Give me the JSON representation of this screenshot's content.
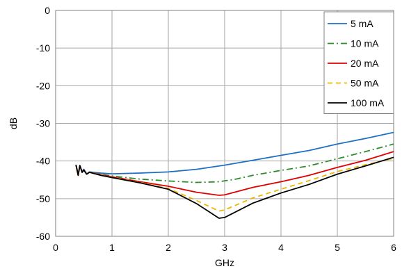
{
  "chart_data": {
    "type": "line",
    "xlabel": "GHz",
    "ylabel": "dB",
    "xlim": [
      0,
      6
    ],
    "ylim": [
      -60,
      0
    ],
    "x_ticks": [
      "0",
      "1",
      "2",
      "3",
      "4",
      "5",
      "6"
    ],
    "y_ticks": [
      "0",
      "-10",
      "-20",
      "-30",
      "-40",
      "-50",
      "-60"
    ],
    "grid": true,
    "legend_position": "top-right",
    "series": [
      {
        "name": "5 mA",
        "color": "#1f6fc5",
        "style": "solid",
        "points": [
          [
            0.36,
            -41.0
          ],
          [
            0.4,
            -43.5
          ],
          [
            0.43,
            -41.2
          ],
          [
            0.47,
            -42.8
          ],
          [
            0.5,
            -42.2
          ],
          [
            0.55,
            -43.4
          ],
          [
            0.6,
            -42.9
          ],
          [
            0.8,
            -43.2
          ],
          [
            1.0,
            -43.4
          ],
          [
            1.5,
            -43.2
          ],
          [
            2.0,
            -42.9
          ],
          [
            2.5,
            -42.2
          ],
          [
            3.0,
            -41.1
          ],
          [
            3.5,
            -39.8
          ],
          [
            4.0,
            -38.5
          ],
          [
            4.5,
            -37.2
          ],
          [
            5.0,
            -35.5
          ],
          [
            5.5,
            -34.0
          ],
          [
            6.0,
            -32.4
          ]
        ]
      },
      {
        "name": "10 mA",
        "color": "#2e8b2e",
        "style": "dashdot",
        "points": [
          [
            0.36,
            -41.0
          ],
          [
            0.4,
            -43.8
          ],
          [
            0.43,
            -41.2
          ],
          [
            0.47,
            -43.0
          ],
          [
            0.5,
            -42.4
          ],
          [
            0.55,
            -43.5
          ],
          [
            0.6,
            -43.0
          ],
          [
            0.8,
            -43.5
          ],
          [
            1.0,
            -44.0
          ],
          [
            1.5,
            -44.8
          ],
          [
            2.0,
            -45.3
          ],
          [
            2.5,
            -45.7
          ],
          [
            2.9,
            -45.5
          ],
          [
            3.2,
            -44.8
          ],
          [
            3.5,
            -43.8
          ],
          [
            4.0,
            -42.5
          ],
          [
            4.5,
            -41.3
          ],
          [
            5.0,
            -39.4
          ],
          [
            5.5,
            -37.5
          ],
          [
            6.0,
            -35.5
          ]
        ]
      },
      {
        "name": "20 mA",
        "color": "#e00000",
        "style": "solid",
        "points": [
          [
            0.36,
            -41.0
          ],
          [
            0.4,
            -43.8
          ],
          [
            0.43,
            -41.2
          ],
          [
            0.47,
            -43.0
          ],
          [
            0.5,
            -42.4
          ],
          [
            0.55,
            -43.5
          ],
          [
            0.6,
            -43.0
          ],
          [
            0.8,
            -43.6
          ],
          [
            1.0,
            -44.2
          ],
          [
            1.5,
            -45.5
          ],
          [
            2.0,
            -46.7
          ],
          [
            2.5,
            -48.3
          ],
          [
            2.9,
            -49.1
          ],
          [
            3.0,
            -49.0
          ],
          [
            3.5,
            -47.0
          ],
          [
            4.0,
            -45.5
          ],
          [
            4.5,
            -43.8
          ],
          [
            5.0,
            -41.7
          ],
          [
            5.5,
            -39.8
          ],
          [
            6.0,
            -37.5
          ]
        ]
      },
      {
        "name": "50 mA",
        "color": "#f0b400",
        "style": "dashed",
        "points": [
          [
            0.36,
            -41.0
          ],
          [
            0.4,
            -43.8
          ],
          [
            0.43,
            -41.2
          ],
          [
            0.47,
            -43.0
          ],
          [
            0.5,
            -42.4
          ],
          [
            0.55,
            -43.5
          ],
          [
            0.6,
            -43.0
          ],
          [
            0.8,
            -43.7
          ],
          [
            1.0,
            -44.3
          ],
          [
            1.5,
            -45.7
          ],
          [
            2.0,
            -47.3
          ],
          [
            2.5,
            -50.5
          ],
          [
            2.9,
            -53.3
          ],
          [
            3.0,
            -53.0
          ],
          [
            3.5,
            -49.8
          ],
          [
            4.0,
            -47.5
          ],
          [
            4.5,
            -45.2
          ],
          [
            5.0,
            -42.8
          ],
          [
            5.5,
            -41.0
          ],
          [
            6.0,
            -39.3
          ]
        ]
      },
      {
        "name": "100 mA",
        "color": "#000000",
        "style": "solid",
        "points": [
          [
            0.36,
            -41.0
          ],
          [
            0.4,
            -43.8
          ],
          [
            0.43,
            -41.2
          ],
          [
            0.47,
            -43.0
          ],
          [
            0.5,
            -42.4
          ],
          [
            0.55,
            -43.5
          ],
          [
            0.6,
            -43.0
          ],
          [
            0.8,
            -43.8
          ],
          [
            1.0,
            -44.4
          ],
          [
            1.5,
            -45.8
          ],
          [
            2.0,
            -47.5
          ],
          [
            2.5,
            -51.3
          ],
          [
            2.9,
            -55.2
          ],
          [
            3.0,
            -55.0
          ],
          [
            3.5,
            -51.2
          ],
          [
            4.0,
            -48.5
          ],
          [
            4.5,
            -46.2
          ],
          [
            5.0,
            -43.5
          ],
          [
            5.5,
            -41.3
          ],
          [
            6.0,
            -39.0
          ]
        ]
      }
    ]
  }
}
